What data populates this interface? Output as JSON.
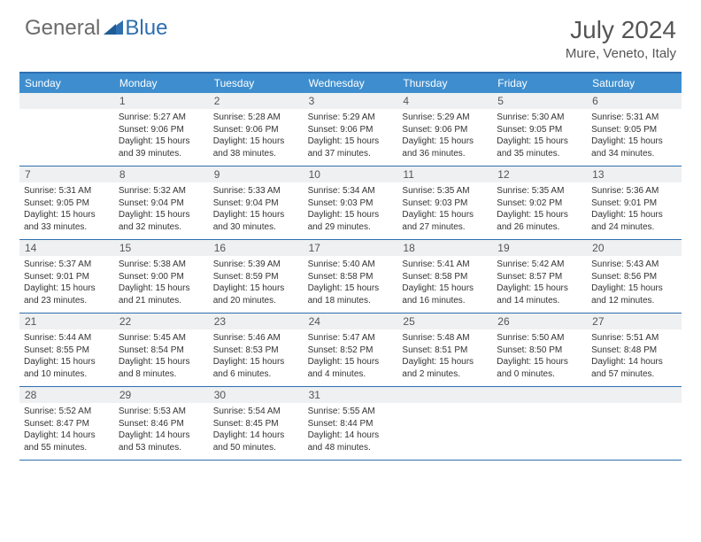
{
  "logo": {
    "part1": "General",
    "part2": "Blue"
  },
  "title": "July 2024",
  "location": "Mure, Veneto, Italy",
  "colors": {
    "header_bg": "#3e8ecf",
    "border": "#2f6fb0",
    "daynum_bg": "#eef0f1",
    "logo_gray": "#6b6b6b",
    "logo_blue": "#2f6fb0"
  },
  "day_names": [
    "Sunday",
    "Monday",
    "Tuesday",
    "Wednesday",
    "Thursday",
    "Friday",
    "Saturday"
  ],
  "weeks": [
    [
      {
        "num": "",
        "sunrise": "",
        "sunset": "",
        "daylight": ""
      },
      {
        "num": "1",
        "sunrise": "Sunrise: 5:27 AM",
        "sunset": "Sunset: 9:06 PM",
        "daylight": "Daylight: 15 hours and 39 minutes."
      },
      {
        "num": "2",
        "sunrise": "Sunrise: 5:28 AM",
        "sunset": "Sunset: 9:06 PM",
        "daylight": "Daylight: 15 hours and 38 minutes."
      },
      {
        "num": "3",
        "sunrise": "Sunrise: 5:29 AM",
        "sunset": "Sunset: 9:06 PM",
        "daylight": "Daylight: 15 hours and 37 minutes."
      },
      {
        "num": "4",
        "sunrise": "Sunrise: 5:29 AM",
        "sunset": "Sunset: 9:06 PM",
        "daylight": "Daylight: 15 hours and 36 minutes."
      },
      {
        "num": "5",
        "sunrise": "Sunrise: 5:30 AM",
        "sunset": "Sunset: 9:05 PM",
        "daylight": "Daylight: 15 hours and 35 minutes."
      },
      {
        "num": "6",
        "sunrise": "Sunrise: 5:31 AM",
        "sunset": "Sunset: 9:05 PM",
        "daylight": "Daylight: 15 hours and 34 minutes."
      }
    ],
    [
      {
        "num": "7",
        "sunrise": "Sunrise: 5:31 AM",
        "sunset": "Sunset: 9:05 PM",
        "daylight": "Daylight: 15 hours and 33 minutes."
      },
      {
        "num": "8",
        "sunrise": "Sunrise: 5:32 AM",
        "sunset": "Sunset: 9:04 PM",
        "daylight": "Daylight: 15 hours and 32 minutes."
      },
      {
        "num": "9",
        "sunrise": "Sunrise: 5:33 AM",
        "sunset": "Sunset: 9:04 PM",
        "daylight": "Daylight: 15 hours and 30 minutes."
      },
      {
        "num": "10",
        "sunrise": "Sunrise: 5:34 AM",
        "sunset": "Sunset: 9:03 PM",
        "daylight": "Daylight: 15 hours and 29 minutes."
      },
      {
        "num": "11",
        "sunrise": "Sunrise: 5:35 AM",
        "sunset": "Sunset: 9:03 PM",
        "daylight": "Daylight: 15 hours and 27 minutes."
      },
      {
        "num": "12",
        "sunrise": "Sunrise: 5:35 AM",
        "sunset": "Sunset: 9:02 PM",
        "daylight": "Daylight: 15 hours and 26 minutes."
      },
      {
        "num": "13",
        "sunrise": "Sunrise: 5:36 AM",
        "sunset": "Sunset: 9:01 PM",
        "daylight": "Daylight: 15 hours and 24 minutes."
      }
    ],
    [
      {
        "num": "14",
        "sunrise": "Sunrise: 5:37 AM",
        "sunset": "Sunset: 9:01 PM",
        "daylight": "Daylight: 15 hours and 23 minutes."
      },
      {
        "num": "15",
        "sunrise": "Sunrise: 5:38 AM",
        "sunset": "Sunset: 9:00 PM",
        "daylight": "Daylight: 15 hours and 21 minutes."
      },
      {
        "num": "16",
        "sunrise": "Sunrise: 5:39 AM",
        "sunset": "Sunset: 8:59 PM",
        "daylight": "Daylight: 15 hours and 20 minutes."
      },
      {
        "num": "17",
        "sunrise": "Sunrise: 5:40 AM",
        "sunset": "Sunset: 8:58 PM",
        "daylight": "Daylight: 15 hours and 18 minutes."
      },
      {
        "num": "18",
        "sunrise": "Sunrise: 5:41 AM",
        "sunset": "Sunset: 8:58 PM",
        "daylight": "Daylight: 15 hours and 16 minutes."
      },
      {
        "num": "19",
        "sunrise": "Sunrise: 5:42 AM",
        "sunset": "Sunset: 8:57 PM",
        "daylight": "Daylight: 15 hours and 14 minutes."
      },
      {
        "num": "20",
        "sunrise": "Sunrise: 5:43 AM",
        "sunset": "Sunset: 8:56 PM",
        "daylight": "Daylight: 15 hours and 12 minutes."
      }
    ],
    [
      {
        "num": "21",
        "sunrise": "Sunrise: 5:44 AM",
        "sunset": "Sunset: 8:55 PM",
        "daylight": "Daylight: 15 hours and 10 minutes."
      },
      {
        "num": "22",
        "sunrise": "Sunrise: 5:45 AM",
        "sunset": "Sunset: 8:54 PM",
        "daylight": "Daylight: 15 hours and 8 minutes."
      },
      {
        "num": "23",
        "sunrise": "Sunrise: 5:46 AM",
        "sunset": "Sunset: 8:53 PM",
        "daylight": "Daylight: 15 hours and 6 minutes."
      },
      {
        "num": "24",
        "sunrise": "Sunrise: 5:47 AM",
        "sunset": "Sunset: 8:52 PM",
        "daylight": "Daylight: 15 hours and 4 minutes."
      },
      {
        "num": "25",
        "sunrise": "Sunrise: 5:48 AM",
        "sunset": "Sunset: 8:51 PM",
        "daylight": "Daylight: 15 hours and 2 minutes."
      },
      {
        "num": "26",
        "sunrise": "Sunrise: 5:50 AM",
        "sunset": "Sunset: 8:50 PM",
        "daylight": "Daylight: 15 hours and 0 minutes."
      },
      {
        "num": "27",
        "sunrise": "Sunrise: 5:51 AM",
        "sunset": "Sunset: 8:48 PM",
        "daylight": "Daylight: 14 hours and 57 minutes."
      }
    ],
    [
      {
        "num": "28",
        "sunrise": "Sunrise: 5:52 AM",
        "sunset": "Sunset: 8:47 PM",
        "daylight": "Daylight: 14 hours and 55 minutes."
      },
      {
        "num": "29",
        "sunrise": "Sunrise: 5:53 AM",
        "sunset": "Sunset: 8:46 PM",
        "daylight": "Daylight: 14 hours and 53 minutes."
      },
      {
        "num": "30",
        "sunrise": "Sunrise: 5:54 AM",
        "sunset": "Sunset: 8:45 PM",
        "daylight": "Daylight: 14 hours and 50 minutes."
      },
      {
        "num": "31",
        "sunrise": "Sunrise: 5:55 AM",
        "sunset": "Sunset: 8:44 PM",
        "daylight": "Daylight: 14 hours and 48 minutes."
      },
      {
        "num": "",
        "sunrise": "",
        "sunset": "",
        "daylight": ""
      },
      {
        "num": "",
        "sunrise": "",
        "sunset": "",
        "daylight": ""
      },
      {
        "num": "",
        "sunrise": "",
        "sunset": "",
        "daylight": ""
      }
    ]
  ]
}
